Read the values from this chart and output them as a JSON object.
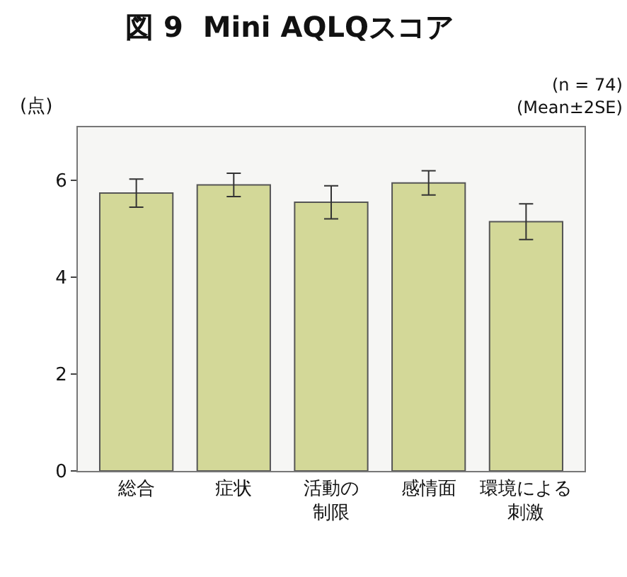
{
  "chart_data": {
    "type": "bar",
    "title": "図 9  Mini AQLQスコア",
    "ylabel": "(点)",
    "annotations": [
      "(n = 74)",
      "(Mean±2SE)"
    ],
    "categories": [
      "総合",
      "症状",
      "活動の制限",
      "感情面",
      "環境による刺激"
    ],
    "values": [
      5.74,
      5.91,
      5.55,
      5.95,
      5.15
    ],
    "errors": [
      0.29,
      0.24,
      0.34,
      0.25,
      0.37
    ],
    "color": "#d3d898",
    "ylim": [
      0,
      7.1
    ],
    "yticks": [
      0,
      2,
      4,
      6
    ],
    "grid": false,
    "legend": false
  }
}
